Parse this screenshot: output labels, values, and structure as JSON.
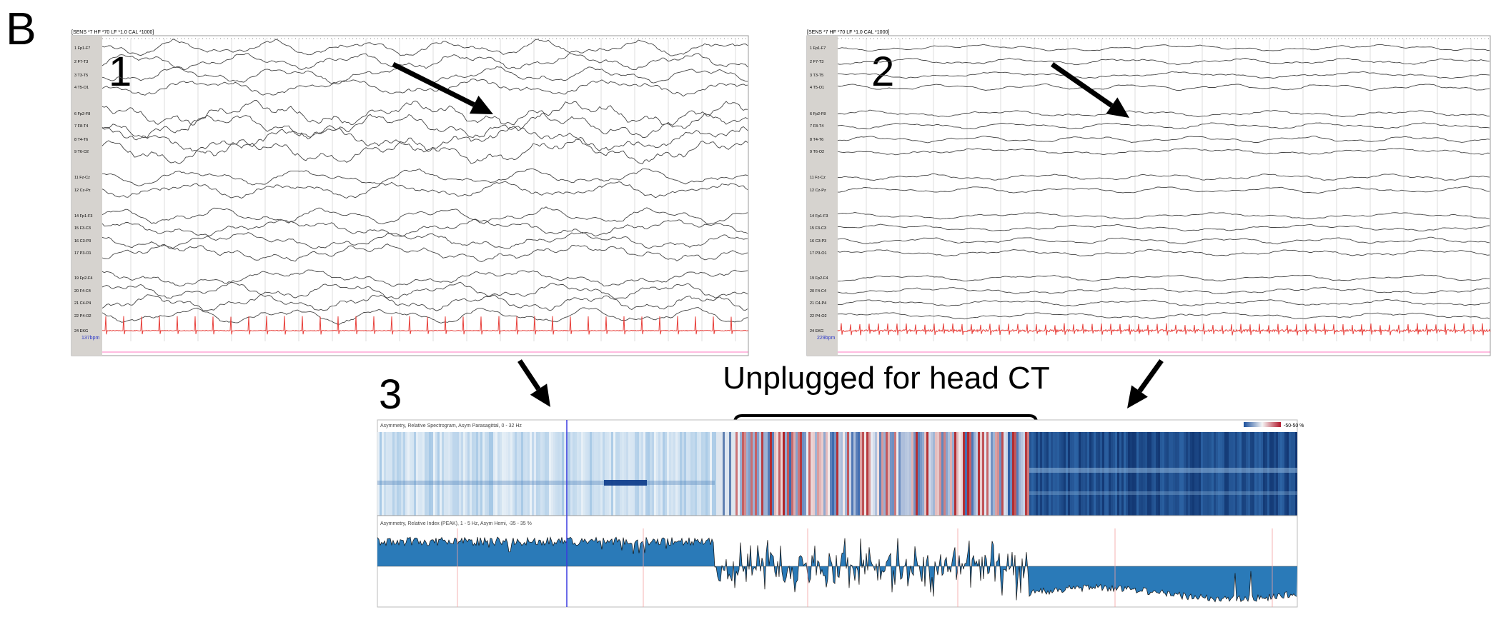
{
  "panel_label": "B",
  "eeg_panels": [
    {
      "number": "1",
      "header": "[SENS *7  HF *70  LF *1.0  CAL *1000]",
      "channels": [
        "1 Fp1-F7",
        "2 F7-T3",
        "3 T3-T5",
        "4 T5-O1",
        "6 Fp2-F8",
        "7 F8-T4",
        "8 T4-T6",
        "9 T6-O2",
        "11 Fz-Cz",
        "12 Cz-Pz",
        "14 Fp1-F3",
        "15 F3-C3",
        "16 C3-P3",
        "17 P3-O1",
        "19 Fp2-F4",
        "20 F4-C4",
        "21 C4-P4",
        "22 P4-O2",
        "24 EKG"
      ],
      "heart_rate": "137bpm"
    },
    {
      "number": "2",
      "header": "[SENS *7  HF *70  LF *1.0  CAL *1000]",
      "channels": [
        "1 Fp1-F7",
        "2 F7-T3",
        "3 T3-T5",
        "4 T5-O1",
        "6 Fp2-F8",
        "7 F8-T4",
        "8 T4-T6",
        "9 T6-O2",
        "11 Fz-Cz",
        "12 Cz-Pz",
        "14 Fp1-F3",
        "15 F3-C3",
        "16 C3-P3",
        "17 P3-O1",
        "19 Fp2-F4",
        "20 F4-C4",
        "21 C4-P4",
        "22 P4-O2",
        "24 EKG"
      ],
      "heart_rate": "229bpm"
    }
  ],
  "trend_panel": {
    "number": "3",
    "annotation": "Unplugged for head CT",
    "spectrogram_title": "Asymmetry, Relative Spectrogram, Asym Parasagittal, 0 - 32 Hz",
    "color_scale_label": "-50-50 %",
    "index_title": "Asymmetry, Relative Index (PEAK), 1 - 5 Hz, Asym Hemi, -35 - 35 %"
  }
}
